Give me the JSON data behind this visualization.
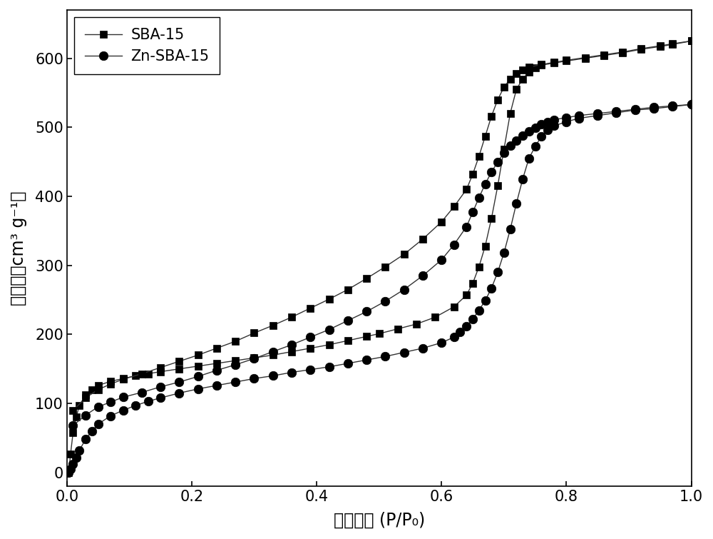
{
  "title": "",
  "xlabel": "相对压力 (P/P₀)",
  "ylabel": "吸附量（cm³ g⁻¹）",
  "xlim": [
    0.0,
    1.0
  ],
  "ylim": [
    -20,
    670
  ],
  "yticks": [
    0,
    100,
    200,
    300,
    400,
    500,
    600
  ],
  "xticks": [
    0.0,
    0.2,
    0.4,
    0.6,
    0.8,
    1.0
  ],
  "legend_labels": [
    "SBA-15",
    "Zn-SBA-15"
  ],
  "sba15_ads_x": [
    0.003,
    0.006,
    0.01,
    0.015,
    0.02,
    0.03,
    0.04,
    0.05,
    0.07,
    0.09,
    0.11,
    0.13,
    0.15,
    0.18,
    0.21,
    0.24,
    0.27,
    0.3,
    0.33,
    0.36,
    0.39,
    0.42,
    0.45,
    0.48,
    0.5,
    0.53,
    0.56,
    0.59,
    0.62,
    0.64,
    0.65,
    0.66,
    0.67,
    0.68,
    0.69,
    0.7,
    0.71,
    0.72,
    0.73,
    0.74,
    0.75,
    0.76,
    0.78,
    0.8,
    0.83,
    0.86,
    0.89,
    0.92,
    0.95,
    0.97,
    1.0
  ],
  "sba15_ads_y": [
    0,
    27,
    58,
    80,
    97,
    112,
    120,
    126,
    132,
    136,
    140,
    143,
    146,
    150,
    154,
    158,
    162,
    166,
    170,
    175,
    180,
    185,
    191,
    197,
    201,
    208,
    215,
    225,
    240,
    257,
    274,
    298,
    328,
    368,
    415,
    468,
    520,
    555,
    570,
    580,
    586,
    590,
    593,
    596,
    600,
    604,
    608,
    613,
    617,
    620,
    625
  ],
  "sba15_des_x": [
    1.0,
    0.97,
    0.95,
    0.92,
    0.89,
    0.86,
    0.83,
    0.8,
    0.78,
    0.76,
    0.74,
    0.73,
    0.72,
    0.71,
    0.7,
    0.69,
    0.68,
    0.67,
    0.66,
    0.65,
    0.64,
    0.62,
    0.6,
    0.57,
    0.54,
    0.51,
    0.48,
    0.45,
    0.42,
    0.39,
    0.36,
    0.33,
    0.3,
    0.27,
    0.24,
    0.21,
    0.18,
    0.15,
    0.12,
    0.09,
    0.07,
    0.05,
    0.03,
    0.01
  ],
  "sba15_des_y": [
    625,
    621,
    618,
    614,
    609,
    605,
    601,
    597,
    594,
    591,
    587,
    583,
    578,
    570,
    558,
    540,
    516,
    487,
    458,
    432,
    410,
    385,
    363,
    338,
    316,
    298,
    281,
    265,
    251,
    238,
    225,
    213,
    202,
    190,
    180,
    170,
    161,
    152,
    143,
    135,
    128,
    120,
    108,
    90
  ],
  "znsba15_ads_x": [
    0.003,
    0.006,
    0.01,
    0.015,
    0.02,
    0.03,
    0.04,
    0.05,
    0.07,
    0.09,
    0.11,
    0.13,
    0.15,
    0.18,
    0.21,
    0.24,
    0.27,
    0.3,
    0.33,
    0.36,
    0.39,
    0.42,
    0.45,
    0.48,
    0.51,
    0.54,
    0.57,
    0.6,
    0.62,
    0.63,
    0.64,
    0.65,
    0.66,
    0.67,
    0.68,
    0.69,
    0.7,
    0.71,
    0.72,
    0.73,
    0.74,
    0.75,
    0.76,
    0.77,
    0.78,
    0.8,
    0.82,
    0.85,
    0.88,
    0.91,
    0.94,
    0.97,
    1.0
  ],
  "znsba15_ads_y": [
    0,
    5,
    12,
    22,
    32,
    48,
    60,
    70,
    82,
    90,
    97,
    103,
    108,
    115,
    121,
    126,
    131,
    136,
    140,
    145,
    149,
    153,
    158,
    163,
    168,
    174,
    180,
    188,
    196,
    203,
    212,
    222,
    235,
    249,
    267,
    290,
    318,
    352,
    390,
    425,
    455,
    472,
    487,
    496,
    502,
    508,
    513,
    517,
    521,
    525,
    527,
    530,
    533
  ],
  "znsba15_des_x": [
    1.0,
    0.97,
    0.94,
    0.91,
    0.88,
    0.85,
    0.82,
    0.8,
    0.78,
    0.77,
    0.76,
    0.75,
    0.74,
    0.73,
    0.72,
    0.71,
    0.7,
    0.69,
    0.68,
    0.67,
    0.66,
    0.65,
    0.64,
    0.62,
    0.6,
    0.57,
    0.54,
    0.51,
    0.48,
    0.45,
    0.42,
    0.39,
    0.36,
    0.33,
    0.3,
    0.27,
    0.24,
    0.21,
    0.18,
    0.15,
    0.12,
    0.09,
    0.07,
    0.05,
    0.03,
    0.01
  ],
  "znsba15_des_y": [
    533,
    531,
    529,
    526,
    523,
    520,
    517,
    514,
    511,
    508,
    504,
    499,
    494,
    488,
    481,
    473,
    463,
    450,
    435,
    418,
    398,
    377,
    356,
    330,
    308,
    285,
    265,
    248,
    233,
    220,
    207,
    196,
    185,
    175,
    165,
    156,
    148,
    139,
    131,
    124,
    116,
    109,
    102,
    95,
    83,
    68
  ],
  "line_color": "#333333",
  "marker_color": "#000000",
  "bg_color": "#ffffff",
  "font_size_label": 17,
  "font_size_tick": 15,
  "font_size_legend": 15
}
